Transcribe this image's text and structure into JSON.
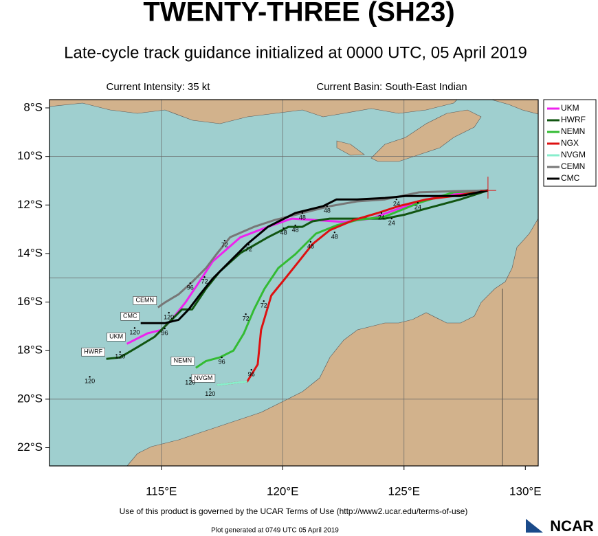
{
  "chart_data": {
    "type": "track-map",
    "title": "TWENTY-THREE (SH23)",
    "subtitle": "Late-cycle track guidance initialized at 0000 UTC, 05 April 2019",
    "intensity": "Current Intensity: 35 kt",
    "basin": "Current Basin: South-East Indian",
    "footer": "Use of this product is governed by the UCAR Terms of Use (http://www2.ucar.edu/terms-of-use)",
    "generated": "Plot generated at 0749 UTC   05 April 2019",
    "logo": "NCAR",
    "xlim": [
      110.39,
      130.53
    ],
    "ylim": [
      -22.75,
      -7.66
    ],
    "xticks": [
      {
        "value": 115,
        "label": "115°E"
      },
      {
        "value": 120,
        "label": "120°E"
      },
      {
        "value": 125,
        "label": "125°E"
      },
      {
        "value": 130,
        "label": "130°E"
      }
    ],
    "yticks": [
      {
        "value": -8,
        "label": "8°S"
      },
      {
        "value": -10,
        "label": "10°S"
      },
      {
        "value": -12,
        "label": "12°S"
      },
      {
        "value": -14,
        "label": "14°S"
      },
      {
        "value": -16,
        "label": "16°S"
      },
      {
        "value": -18,
        "label": "18°S"
      },
      {
        "value": -20,
        "label": "20°S"
      },
      {
        "value": -22,
        "label": "22°S"
      }
    ],
    "grid_x": [
      115,
      120,
      125
    ],
    "grid_y": [
      -10,
      -15,
      -20
    ],
    "legend": "outside-right",
    "series": [
      {
        "name": "UKM",
        "color": "#ee22ee",
        "label_end": true,
        "x": [
          128.46,
          126.47,
          125.06,
          123.64,
          122.51,
          121.37,
          120.38,
          119.39,
          118.26,
          117.12,
          116.56,
          115.99,
          115.42,
          115.0,
          114.43,
          113.58
        ],
        "values": [
          -11.4,
          -11.63,
          -12.05,
          -12.56,
          -12.7,
          -12.62,
          -12.56,
          -12.9,
          -13.33,
          -14.32,
          -15.17,
          -16.02,
          -16.73,
          -17.15,
          -17.29,
          -17.72
        ]
      },
      {
        "name": "HWRF",
        "color": "#115511",
        "label_end": true,
        "x": [
          128.46,
          127.32,
          125.76,
          125.06,
          124.21,
          121.94,
          121.23,
          120.81,
          120.24,
          119.39,
          118.26,
          117.41,
          116.84,
          116.27,
          115.85,
          115.28,
          114.72,
          114.01,
          113.3,
          112.73
        ],
        "values": [
          -11.4,
          -11.77,
          -12.19,
          -12.39,
          -12.56,
          -12.56,
          -12.67,
          -12.9,
          -12.9,
          -13.33,
          -13.98,
          -14.74,
          -15.45,
          -16.3,
          -16.3,
          -16.87,
          -17.43,
          -17.86,
          -18.28,
          -18.34
        ]
      },
      {
        "name": "NEMN",
        "color": "#33bb33",
        "label_end": true,
        "x": [
          128.46,
          127.04,
          125.62,
          124.21,
          123.07,
          122.22,
          121.37,
          120.52,
          119.82,
          119.25,
          118.82,
          118.4,
          117.97,
          117.41,
          116.84,
          116.42
        ],
        "values": [
          -11.4,
          -11.48,
          -11.91,
          -12.48,
          -12.62,
          -12.84,
          -13.18,
          -14.03,
          -14.6,
          -15.45,
          -16.3,
          -17.29,
          -18.0,
          -18.28,
          -18.43,
          -18.71
        ]
      },
      {
        "name": "NGX",
        "color": "#dd1111",
        "label_end": false,
        "x": [
          128.46,
          127.04,
          125.91,
          124.77,
          123.92,
          122.93,
          121.94,
          121.23,
          120.67,
          120.1,
          119.53,
          119.11,
          118.97,
          118.54,
          117.27
        ],
        "values": [
          -11.4,
          -11.63,
          -11.77,
          -12.05,
          -12.33,
          -12.62,
          -13.04,
          -13.61,
          -14.32,
          -15.03,
          -15.73,
          -17.15,
          -18.57,
          -19.27,
          -19.42
        ]
      },
      {
        "name": "NVGM",
        "color": "#88eecc",
        "label_end": true,
        "x": [
          118.54,
          117.27
        ],
        "values": [
          -19.27,
          -19.42
        ]
      },
      {
        "name": "CEMN",
        "color": "#777777",
        "label_end": true,
        "x": [
          128.46,
          127.04,
          125.62,
          124.21,
          123.07,
          121.94,
          120.81,
          119.67,
          118.82,
          117.83,
          117.27,
          116.84,
          116.27,
          115.71,
          115.14,
          114.86
        ],
        "values": [
          -11.4,
          -11.43,
          -11.48,
          -11.77,
          -11.85,
          -12.05,
          -12.33,
          -12.62,
          -12.9,
          -13.33,
          -14.03,
          -14.6,
          -15.17,
          -15.68,
          -16.02,
          -16.22
        ]
      },
      {
        "name": "CMC",
        "color": "#000000",
        "label_end": true,
        "x": [
          128.46,
          127.32,
          125.06,
          124.21,
          123.07,
          122.22,
          121.66,
          120.52,
          119.39,
          118.54,
          117.83,
          117.12,
          116.56,
          116.13,
          115.71,
          115.14,
          114.15
        ],
        "values": [
          -11.4,
          -11.63,
          -11.63,
          -11.71,
          -11.77,
          -11.77,
          -12.05,
          -12.33,
          -12.9,
          -13.61,
          -14.32,
          -15.03,
          -15.73,
          -16.3,
          -16.73,
          -16.87,
          -16.87
        ]
      }
    ],
    "annotations": [
      {
        "text": "120",
        "lon": 112.05,
        "lat": -19.08
      },
      {
        "text": "120",
        "lon": 113.3,
        "lat": -18.06
      },
      {
        "text": "120",
        "lon": 113.9,
        "lat": -17.07
      },
      {
        "text": "120",
        "lon": 115.31,
        "lat": -16.44
      },
      {
        "text": "120",
        "lon": 116.19,
        "lat": -19.13
      },
      {
        "text": "120",
        "lon": 117.01,
        "lat": -19.59
      },
      {
        "text": "96",
        "lon": 116.19,
        "lat": -15.22
      },
      {
        "text": "96",
        "lon": 117.49,
        "lat": -18.28
      },
      {
        "text": "96",
        "lon": 118.71,
        "lat": -18.79
      },
      {
        "text": "96",
        "lon": 115.14,
        "lat": -17.09
      },
      {
        "text": "72",
        "lon": 117.61,
        "lat": -13.47
      },
      {
        "text": "72",
        "lon": 118.6,
        "lat": -13.64
      },
      {
        "text": "72",
        "lon": 119.22,
        "lat": -15.96
      },
      {
        "text": "72",
        "lon": 118.48,
        "lat": -16.5
      },
      {
        "text": "72",
        "lon": 116.78,
        "lat": -14.97
      },
      {
        "text": "48",
        "lon": 120.04,
        "lat": -12.96
      },
      {
        "text": "48",
        "lon": 120.52,
        "lat": -12.84
      },
      {
        "text": "48",
        "lon": 120.81,
        "lat": -12.33
      },
      {
        "text": "48",
        "lon": 121.83,
        "lat": -12.05
      },
      {
        "text": "48",
        "lon": 122.14,
        "lat": -13.13
      },
      {
        "text": "48",
        "lon": 121.15,
        "lat": -13.52
      },
      {
        "text": "24",
        "lon": 124.69,
        "lat": -11.77
      },
      {
        "text": "24",
        "lon": 125.57,
        "lat": -11.91
      },
      {
        "text": "24",
        "lon": 124.49,
        "lat": -12.56
      },
      {
        "text": "24",
        "lon": 124.07,
        "lat": -12.33
      }
    ]
  }
}
